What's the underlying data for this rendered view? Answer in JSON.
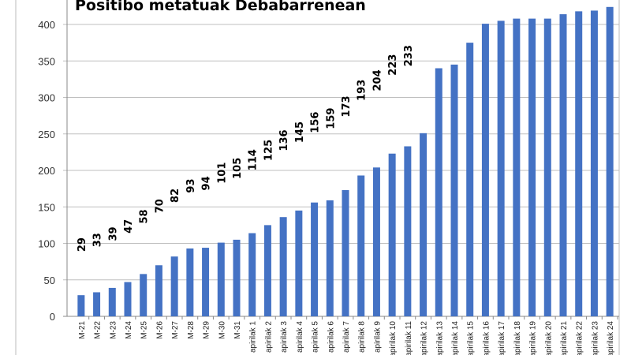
{
  "chart_data": {
    "type": "bar",
    "title": "Positibo metatuak Debabarrenean",
    "categories": [
      "M-21",
      "M-22",
      "M-23",
      "M-24",
      "M-25",
      "M-26",
      "M-27",
      "M-28",
      "M-29",
      "M-30",
      "M-31",
      "apirilak 1",
      "apirilak 2",
      "apirilak 3",
      "apirilak 4",
      "apirilak 5",
      "apirilak 6",
      "apirilak 7",
      "apirilak 8",
      "apirilak 9",
      "apirilak 10",
      "apirilak 11",
      "apirilak 12",
      "apirilak 13",
      "apirilak 14",
      "apirilak 15",
      "apirilak 16",
      "apirilak 17",
      "apirilak 18",
      "apirilak 19",
      "apirilak 20",
      "apirilak 21",
      "apirilak 22",
      "apirilak 23",
      "apirilak 24"
    ],
    "values": [
      29,
      33,
      39,
      47,
      58,
      70,
      82,
      93,
      94,
      101,
      105,
      114,
      125,
      136,
      145,
      156,
      159,
      173,
      193,
      204,
      223,
      233,
      251,
      340,
      345,
      375,
      401,
      405,
      408,
      408,
      408,
      414,
      418,
      419,
      424
    ],
    "data_labels_shown": 22,
    "ylim": [
      0,
      400
    ],
    "yticks": [
      0,
      50,
      100,
      150,
      200,
      250,
      300,
      350,
      400
    ],
    "grid": true,
    "bar_color": "#4472C4"
  }
}
